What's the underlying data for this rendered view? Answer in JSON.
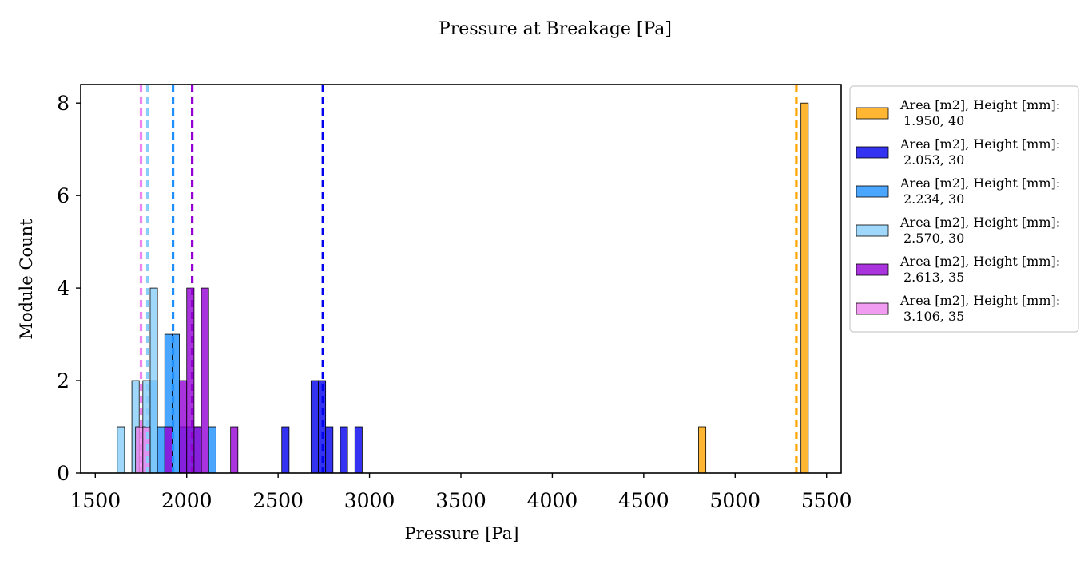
{
  "chart_data": {
    "type": "histogram",
    "title": "Pressure at Breakage [Pa]",
    "xlabel": "Pressure [Pa]",
    "ylabel": "Module Count",
    "xlim": [
      1420,
      5580
    ],
    "ylim": [
      0,
      8.4
    ],
    "xticks": [
      1500,
      2000,
      2500,
      3000,
      3500,
      4000,
      4500,
      5000,
      5500
    ],
    "yticks": [
      0,
      2,
      4,
      6,
      8
    ],
    "bin_width": 40,
    "legend_position": "outside right",
    "series": [
      {
        "name": "Area [m2], Height [mm]:",
        "value_label": "1.950, 40",
        "color": "#FFA500",
        "mean_line": 5335,
        "bins": [
          [
            4800,
            1
          ],
          [
            5360,
            8
          ]
        ]
      },
      {
        "name": "Area [m2], Height [mm]:",
        "value_label": "2.053, 30",
        "color": "#0000EE",
        "mean_line": 2745,
        "bins": [
          [
            2520,
            1
          ],
          [
            2680,
            2
          ],
          [
            2720,
            2
          ],
          [
            2760,
            1
          ],
          [
            2840,
            1
          ],
          [
            2920,
            1
          ]
        ]
      },
      {
        "name": "Area [m2], Height [mm]:",
        "value_label": "2.234, 30",
        "color": "#1E90FF",
        "mean_line": 1925,
        "bins": [
          [
            1800,
            2
          ],
          [
            1840,
            1
          ],
          [
            1880,
            3
          ],
          [
            1920,
            3
          ],
          [
            1960,
            1
          ],
          [
            2000,
            1
          ],
          [
            2040,
            1
          ],
          [
            2120,
            1
          ]
        ]
      },
      {
        "name": "Area [m2], Height [mm]:",
        "value_label": "2.570, 30",
        "color": "#87CEFA",
        "mean_line": 1785,
        "bins": [
          [
            1620,
            1
          ],
          [
            1700,
            2
          ],
          [
            1760,
            2
          ],
          [
            1800,
            4
          ]
        ]
      },
      {
        "name": "Area [m2], Height [mm]:",
        "value_label": "2.613, 35",
        "color": "#9400D3",
        "mean_line": 2030,
        "bins": [
          [
            1880,
            1
          ],
          [
            1960,
            2
          ],
          [
            2000,
            4
          ],
          [
            2040,
            1
          ],
          [
            2080,
            4
          ],
          [
            2240,
            1
          ]
        ]
      },
      {
        "name": "Area [m2], Height [mm]:",
        "value_label": "3.106, 35",
        "color": "#EE82EE",
        "mean_line": 1750,
        "bins": [
          [
            1720,
            1
          ],
          [
            1760,
            1
          ]
        ]
      }
    ]
  }
}
